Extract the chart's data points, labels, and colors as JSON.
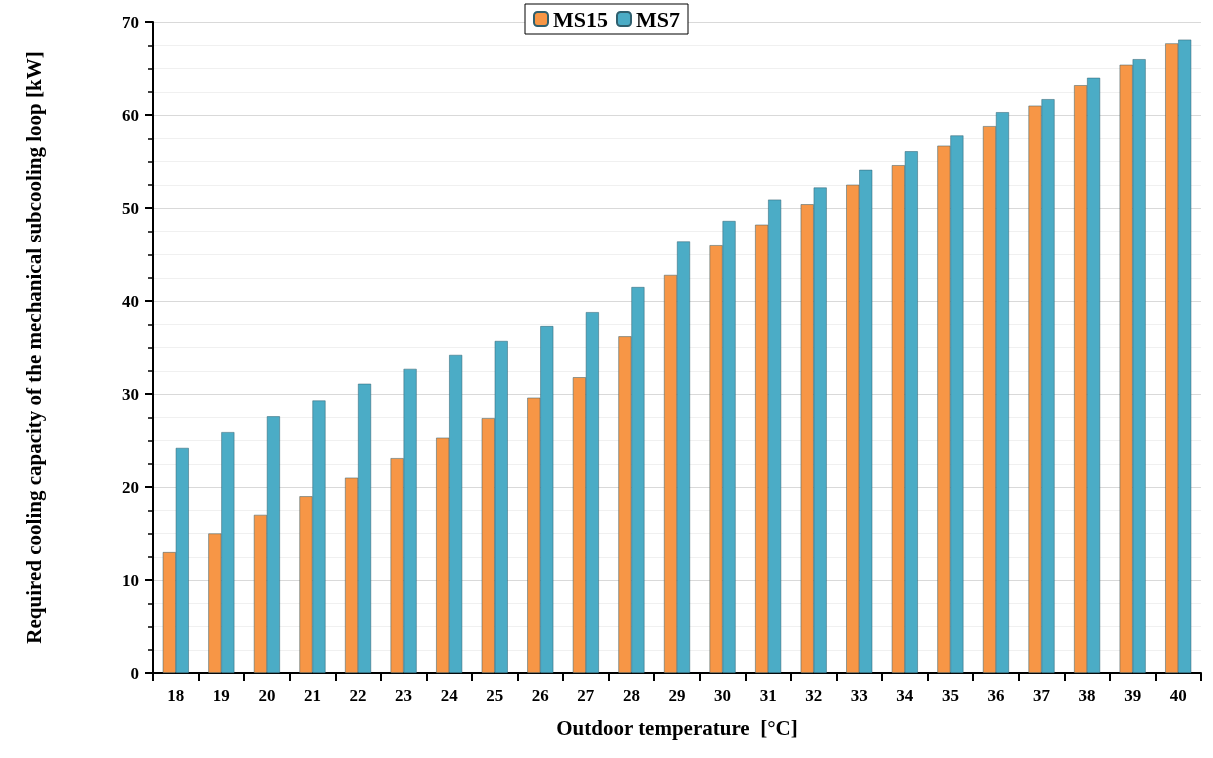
{
  "chart_data": {
    "type": "bar",
    "xlabel": "Outdoor temperature  [°C]",
    "ylabel": "Required cooling capacity of the mechanical subcooling loop [kW]",
    "categories": [
      "18",
      "19",
      "20",
      "21",
      "22",
      "23",
      "24",
      "25",
      "26",
      "27",
      "28",
      "29",
      "30",
      "31",
      "32",
      "33",
      "34",
      "35",
      "36",
      "37",
      "38",
      "39",
      "40"
    ],
    "series": [
      {
        "name": "MS15",
        "color": "#f79646",
        "values": [
          13,
          15,
          17,
          19,
          21,
          23.1,
          25.3,
          27.4,
          29.6,
          31.8,
          36.2,
          42.8,
          46,
          48.2,
          50.4,
          52.5,
          54.6,
          56.7,
          58.8,
          61,
          63.2,
          65.4,
          67.7
        ]
      },
      {
        "name": "MS7",
        "color": "#4bacc6",
        "values": [
          24.2,
          25.9,
          27.6,
          29.3,
          31.1,
          32.7,
          34.2,
          35.7,
          37.3,
          38.8,
          41.5,
          46.4,
          48.6,
          50.9,
          52.2,
          54.1,
          56.1,
          57.8,
          60.3,
          61.7,
          64,
          66,
          68.1
        ]
      }
    ],
    "ylim": [
      0,
      70
    ],
    "yticks": [
      0,
      10,
      20,
      30,
      40,
      50,
      60,
      70
    ],
    "grid": "y",
    "legend": "top"
  }
}
